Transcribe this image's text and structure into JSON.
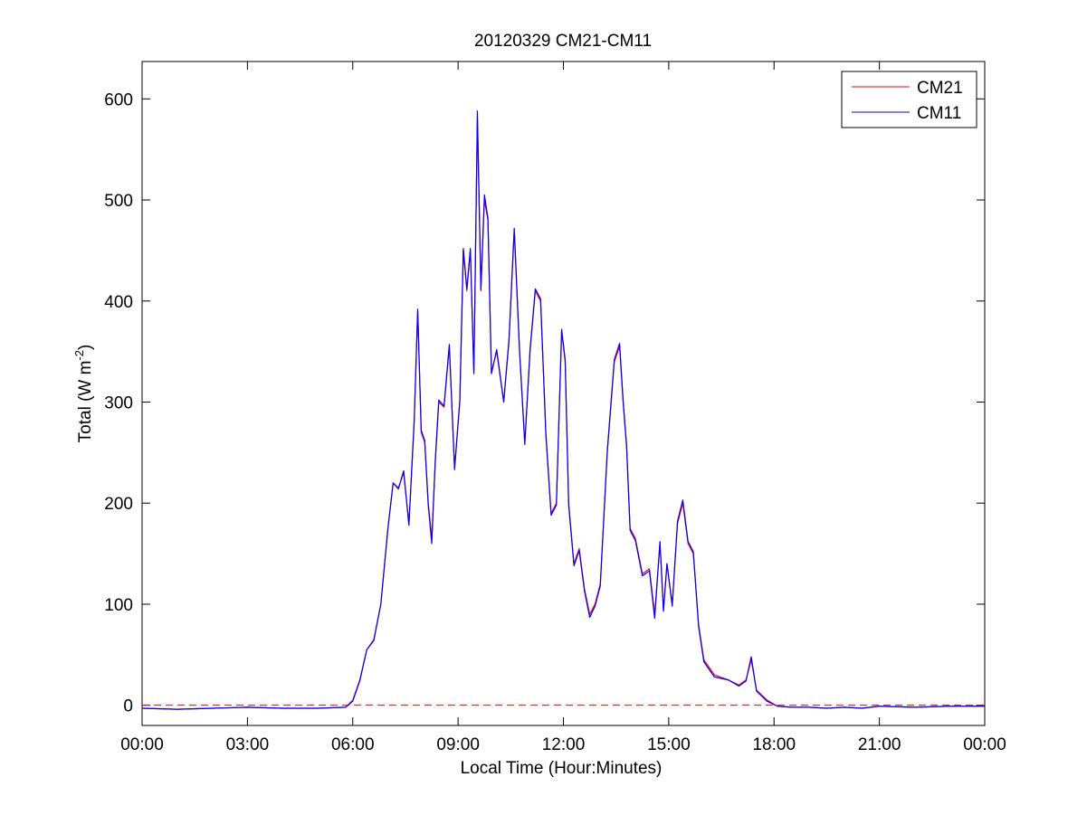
{
  "chart_data": {
    "type": "line",
    "title": "20120329 CM21-CM11",
    "xlabel": "Local Time (Hour:Minutes)",
    "ylabel": {
      "main": "Total (W m",
      "superscript": "-2",
      "suffix": ")"
    },
    "xlim": [
      0,
      24
    ],
    "ylim": [
      -20,
      637
    ],
    "x_ticks": [
      0,
      3,
      6,
      9,
      12,
      15,
      18,
      21,
      24
    ],
    "x_tick_labels": [
      "00:00",
      "03:00",
      "06:00",
      "09:00",
      "12:00",
      "15:00",
      "18:00",
      "21:00",
      "00:00"
    ],
    "y_ticks": [
      0,
      100,
      200,
      300,
      400,
      500,
      600
    ],
    "y_tick_labels": [
      "0",
      "100",
      "200",
      "300",
      "400",
      "500",
      "600"
    ],
    "grid": false,
    "legend_position": "top-right",
    "reference_line": {
      "y": 0,
      "style": "dashed",
      "color": "#ff0000"
    },
    "series": [
      {
        "name": "CM21",
        "color": "#ff0000",
        "x": [
          0.0,
          1.0,
          2.0,
          3.0,
          4.0,
          5.0,
          5.8,
          6.0,
          6.2,
          6.4,
          6.6,
          6.8,
          7.0,
          7.15,
          7.3,
          7.45,
          7.6,
          7.75,
          7.85,
          7.95,
          8.05,
          8.15,
          8.25,
          8.35,
          8.45,
          8.6,
          8.75,
          8.9,
          9.05,
          9.15,
          9.25,
          9.35,
          9.45,
          9.55,
          9.65,
          9.75,
          9.85,
          9.95,
          10.1,
          10.3,
          10.45,
          10.6,
          10.75,
          10.9,
          11.05,
          11.2,
          11.35,
          11.5,
          11.65,
          11.8,
          11.95,
          12.05,
          12.15,
          12.3,
          12.45,
          12.6,
          12.75,
          12.9,
          13.05,
          13.25,
          13.45,
          13.6,
          13.7,
          13.8,
          13.9,
          14.05,
          14.25,
          14.45,
          14.6,
          14.75,
          14.85,
          14.95,
          15.1,
          15.25,
          15.4,
          15.55,
          15.7,
          15.85,
          16.0,
          16.3,
          16.7,
          17.0,
          17.2,
          17.35,
          17.5,
          17.8,
          18.1,
          18.5,
          19.0,
          19.5,
          20.0,
          20.5,
          21.0,
          22.0,
          23.0,
          24.0
        ],
        "values": [
          -3,
          -4,
          -3,
          -2,
          -3,
          -3,
          -2,
          5,
          25,
          55,
          65,
          100,
          175,
          220,
          215,
          230,
          180,
          280,
          390,
          270,
          260,
          200,
          165,
          240,
          300,
          295,
          355,
          235,
          300,
          450,
          410,
          450,
          330,
          580,
          410,
          500,
          480,
          330,
          350,
          300,
          360,
          470,
          350,
          260,
          350,
          410,
          400,
          270,
          190,
          200,
          370,
          340,
          200,
          140,
          155,
          115,
          90,
          100,
          120,
          250,
          340,
          355,
          300,
          255,
          175,
          165,
          130,
          135,
          90,
          160,
          95,
          140,
          100,
          180,
          200,
          160,
          150,
          80,
          45,
          30,
          25,
          20,
          25,
          45,
          15,
          5,
          -1,
          -2,
          -2,
          -3,
          -2,
          -3,
          -1,
          -2,
          -1,
          -1
        ]
      },
      {
        "name": "CM11",
        "color": "#0000ff",
        "x": [
          0.0,
          1.0,
          2.0,
          3.0,
          4.0,
          5.0,
          5.8,
          6.0,
          6.2,
          6.4,
          6.6,
          6.8,
          7.0,
          7.15,
          7.3,
          7.45,
          7.6,
          7.75,
          7.85,
          7.95,
          8.05,
          8.15,
          8.25,
          8.35,
          8.45,
          8.6,
          8.75,
          8.9,
          9.05,
          9.15,
          9.25,
          9.35,
          9.45,
          9.55,
          9.65,
          9.75,
          9.85,
          9.95,
          10.1,
          10.3,
          10.45,
          10.6,
          10.75,
          10.9,
          11.05,
          11.2,
          11.35,
          11.5,
          11.65,
          11.8,
          11.95,
          12.05,
          12.15,
          12.3,
          12.45,
          12.6,
          12.75,
          12.9,
          13.05,
          13.25,
          13.45,
          13.6,
          13.7,
          13.8,
          13.9,
          14.05,
          14.25,
          14.45,
          14.6,
          14.75,
          14.85,
          14.95,
          15.1,
          15.25,
          15.4,
          15.55,
          15.7,
          15.85,
          16.0,
          16.3,
          16.7,
          17.0,
          17.2,
          17.35,
          17.5,
          17.8,
          18.1,
          18.5,
          19.0,
          19.5,
          20.0,
          20.5,
          21.0,
          22.0,
          23.0,
          24.0
        ],
        "values": [
          -3,
          -4,
          -3,
          -2,
          -3,
          -3,
          -2,
          4,
          24,
          55,
          64,
          100,
          174,
          220,
          214,
          232,
          178,
          282,
          392,
          272,
          262,
          198,
          160,
          242,
          302,
          296,
          357,
          233,
          302,
          452,
          412,
          452,
          328,
          588,
          412,
          505,
          482,
          328,
          352,
          300,
          362,
          472,
          352,
          258,
          352,
          412,
          402,
          268,
          188,
          198,
          372,
          342,
          198,
          138,
          153,
          113,
          87,
          98,
          118,
          252,
          342,
          358,
          302,
          257,
          173,
          163,
          128,
          133,
          86,
          162,
          93,
          140,
          98,
          182,
          203,
          162,
          152,
          78,
          43,
          28,
          25,
          19,
          24,
          48,
          14,
          4,
          -1,
          -2,
          -2,
          -3,
          -2,
          -3,
          -1,
          -2,
          -1,
          -1
        ]
      }
    ]
  }
}
